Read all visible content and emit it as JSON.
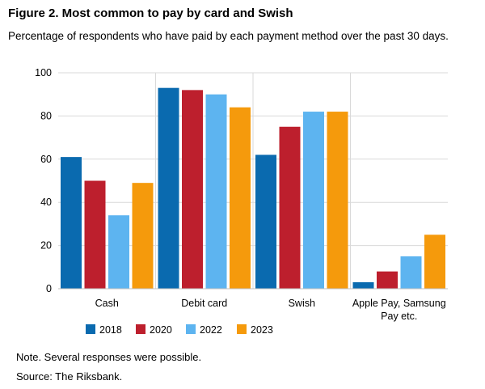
{
  "title": "Figure 2. Most common to pay by card and Swish",
  "subtitle": "Percentage of respondents who have paid by each payment method over the past 30 days.",
  "note": "Note. Several responses were possible.",
  "source": "Source: The Riksbank.",
  "chart_data": {
    "type": "bar",
    "categories": [
      "Cash",
      "Debit card",
      "Swish",
      "Apple Pay, Samsung Pay etc."
    ],
    "category_label_lines": [
      [
        "Cash"
      ],
      [
        "Debit card"
      ],
      [
        "Swish"
      ],
      [
        "Apple Pay, Samsung",
        "Pay etc."
      ]
    ],
    "series": [
      {
        "name": "2018",
        "color": "#0a6aaf",
        "values": [
          61,
          93,
          62,
          3
        ]
      },
      {
        "name": "2020",
        "color": "#bd1f2d",
        "values": [
          50,
          92,
          75,
          8
        ]
      },
      {
        "name": "2022",
        "color": "#5db4f0",
        "values": [
          34,
          90,
          82,
          15
        ]
      },
      {
        "name": "2023",
        "color": "#f59a0c",
        "values": [
          49,
          84,
          82,
          25
        ]
      }
    ],
    "ylim": [
      0,
      100
    ],
    "yticks": [
      0,
      20,
      40,
      60,
      80,
      100
    ],
    "grid": true,
    "legend_position": "bottom"
  }
}
